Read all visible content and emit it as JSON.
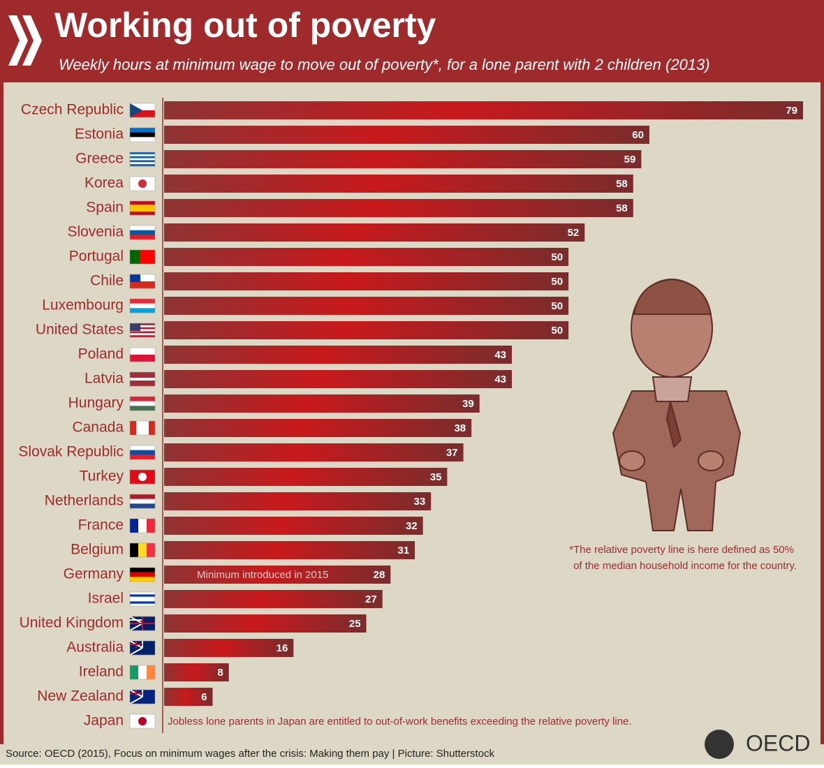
{
  "chart_data": {
    "type": "bar",
    "orientation": "horizontal",
    "title": "Working out of poverty",
    "subtitle": "Weekly hours at minimum wage to move out of poverty*, for a lone parent with 2 children (2013)",
    "categories": [
      "Czech Republic",
      "Estonia",
      "Greece",
      "Korea",
      "Spain",
      "Slovenia",
      "Portugal",
      "Chile",
      "Luxembourg",
      "United States",
      "Poland",
      "Latvia",
      "Hungary",
      "Canada",
      "Slovak Republic",
      "Turkey",
      "Netherlands",
      "France",
      "Belgium",
      "Germany",
      "Israel",
      "United Kingdom",
      "Australia",
      "Ireland",
      "New Zealand",
      "Japan"
    ],
    "values": [
      79,
      60,
      59,
      58,
      58,
      52,
      50,
      50,
      50,
      50,
      43,
      43,
      39,
      38,
      37,
      35,
      33,
      32,
      31,
      28,
      27,
      25,
      16,
      8,
      6,
      null
    ],
    "color": "#c8191c",
    "annotations": [
      {
        "category": "Germany",
        "text": "Minimum introduced in 2015"
      },
      {
        "category": "Japan",
        "text": "Jobless lone parents in Japan are entitled to out-of-work benefits exceeding the relative poverty line."
      }
    ],
    "footnote": [
      "*The relative poverty line is here defined as 50%",
      "of the median household income for the country."
    ],
    "source": "Source: OECD (2015), Focus on minimum wages after the crisis: Making them pay | Picture: Shutterstock",
    "logo": "OECD"
  }
}
